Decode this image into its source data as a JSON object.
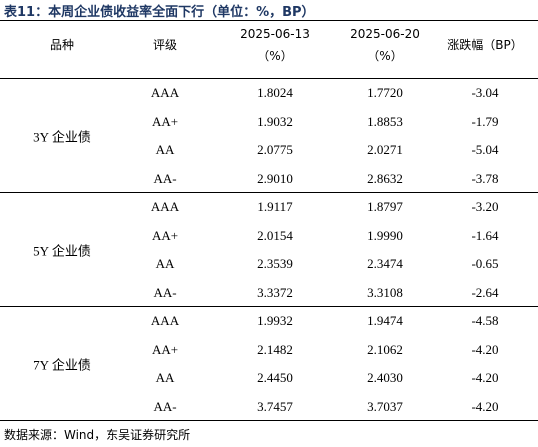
{
  "header": {
    "title": "表11：本周企业债收益率全面下行（单位：%，BP）"
  },
  "table": {
    "columns": [
      "品种",
      "评级",
      "2025-06-13",
      "（%）",
      "2025-06-20",
      "（%）",
      "涨跌幅（BP）"
    ],
    "groups": [
      {
        "name": "3Y 企业债",
        "rows": [
          [
            "AAA",
            "1.8024",
            "1.7720",
            "-3.04"
          ],
          [
            "AA+",
            "1.9032",
            "1.8853",
            "-1.79"
          ],
          [
            "AA",
            "2.0775",
            "2.0271",
            "-5.04"
          ],
          [
            "AA-",
            "2.9010",
            "2.8632",
            "-3.78"
          ]
        ]
      },
      {
        "name": "5Y 企业债",
        "rows": [
          [
            "AAA",
            "1.9117",
            "1.8797",
            "-3.20"
          ],
          [
            "AA+",
            "2.0154",
            "1.9990",
            "-1.64"
          ],
          [
            "AA",
            "2.3539",
            "2.3474",
            "-0.65"
          ],
          [
            "AA-",
            "3.3372",
            "3.3108",
            "-2.64"
          ]
        ]
      },
      {
        "name": "7Y 企业债",
        "rows": [
          [
            "AAA",
            "1.9932",
            "1.9474",
            "-4.58"
          ],
          [
            "AA+",
            "2.1482",
            "2.1062",
            "-4.20"
          ],
          [
            "AA",
            "2.4450",
            "2.4030",
            "-4.20"
          ],
          [
            "AA-",
            "3.7457",
            "3.7037",
            "-4.20"
          ]
        ]
      }
    ]
  },
  "footer": {
    "source": "数据来源：Wind，东吴证券研究所"
  }
}
